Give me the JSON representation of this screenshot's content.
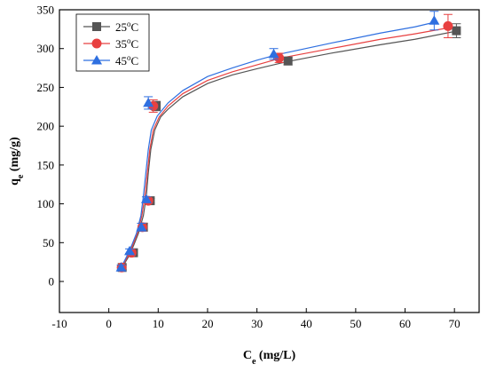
{
  "chart_data": {
    "type": "scatter",
    "xlabel": {
      "main": "C",
      "sub": "e",
      "unit": " (mg/L)"
    },
    "ylabel": {
      "main": "q",
      "sub": "e",
      "unit": " (mg/g)"
    },
    "xlim": [
      -10,
      75
    ],
    "ylim": [
      -40,
      350
    ],
    "xticks": [
      -10,
      0,
      10,
      20,
      30,
      40,
      50,
      60,
      70
    ],
    "yticks": [
      0,
      50,
      100,
      150,
      200,
      250,
      300,
      350
    ],
    "legend_position": "top-left",
    "grid": false,
    "series": [
      {
        "name": "25",
        "name_sup": "o",
        "name_suffix": "C",
        "color": "#555555",
        "marker": "square",
        "x": [
          2.7,
          5.0,
          7.0,
          8.4,
          9.6,
          36.3,
          70.4
        ],
        "y": [
          18,
          37,
          70,
          104,
          226,
          284,
          323
        ],
        "yerr": [
          3,
          3,
          5,
          3,
          6,
          5,
          9
        ],
        "fit": [
          [
            2.7,
            18
          ],
          [
            4,
            32
          ],
          [
            5,
            46
          ],
          [
            6,
            62
          ],
          [
            7,
            85
          ],
          [
            7.6,
            110
          ],
          [
            8,
            140
          ],
          [
            8.5,
            170
          ],
          [
            9.3,
            195
          ],
          [
            10.5,
            212
          ],
          [
            12,
            222
          ],
          [
            15,
            238
          ],
          [
            20,
            255
          ],
          [
            25,
            266
          ],
          [
            30,
            274
          ],
          [
            36,
            283
          ],
          [
            45,
            294
          ],
          [
            55,
            305
          ],
          [
            62,
            312
          ],
          [
            70,
            322
          ]
        ]
      },
      {
        "name": "35",
        "name_sup": "o",
        "name_suffix": "C",
        "color": "#e84040",
        "marker": "circle",
        "x": [
          2.6,
          4.6,
          6.8,
          8.0,
          9.0,
          34.5,
          68.7
        ],
        "y": [
          18,
          37,
          70,
          104,
          226,
          288,
          329
        ],
        "yerr": [
          3,
          3,
          5,
          3,
          8,
          6,
          15
        ],
        "fit": [
          [
            2.6,
            18
          ],
          [
            3.8,
            32
          ],
          [
            4.8,
            46
          ],
          [
            5.8,
            62
          ],
          [
            6.7,
            85
          ],
          [
            7.3,
            110
          ],
          [
            7.8,
            140
          ],
          [
            8.3,
            170
          ],
          [
            9.0,
            195
          ],
          [
            10.2,
            212
          ],
          [
            12,
            226
          ],
          [
            15,
            242
          ],
          [
            20,
            259
          ],
          [
            25,
            270
          ],
          [
            30,
            279
          ],
          [
            35,
            288
          ],
          [
            45,
            300
          ],
          [
            55,
            312
          ],
          [
            62,
            319
          ],
          [
            69,
            327
          ]
        ]
      },
      {
        "name": "45",
        "name_sup": "o",
        "name_suffix": "C",
        "color": "#2e6fe0",
        "marker": "triangle",
        "x": [
          2.5,
          4.2,
          6.6,
          7.6,
          8.0,
          33.4,
          65.9
        ],
        "y": [
          18,
          39,
          70,
          106,
          230,
          293,
          336
        ],
        "yerr": [
          3,
          3,
          5,
          3,
          8,
          7,
          12
        ],
        "fit": [
          [
            2.5,
            18
          ],
          [
            3.6,
            32
          ],
          [
            4.6,
            46
          ],
          [
            5.6,
            62
          ],
          [
            6.5,
            85
          ],
          [
            7.0,
            110
          ],
          [
            7.5,
            140
          ],
          [
            8.0,
            170
          ],
          [
            8.6,
            195
          ],
          [
            9.8,
            213
          ],
          [
            12,
            230
          ],
          [
            15,
            246
          ],
          [
            20,
            264
          ],
          [
            25,
            275
          ],
          [
            30,
            285
          ],
          [
            34,
            292
          ],
          [
            45,
            307
          ],
          [
            55,
            320
          ],
          [
            62,
            328
          ],
          [
            66,
            334
          ]
        ]
      }
    ]
  }
}
